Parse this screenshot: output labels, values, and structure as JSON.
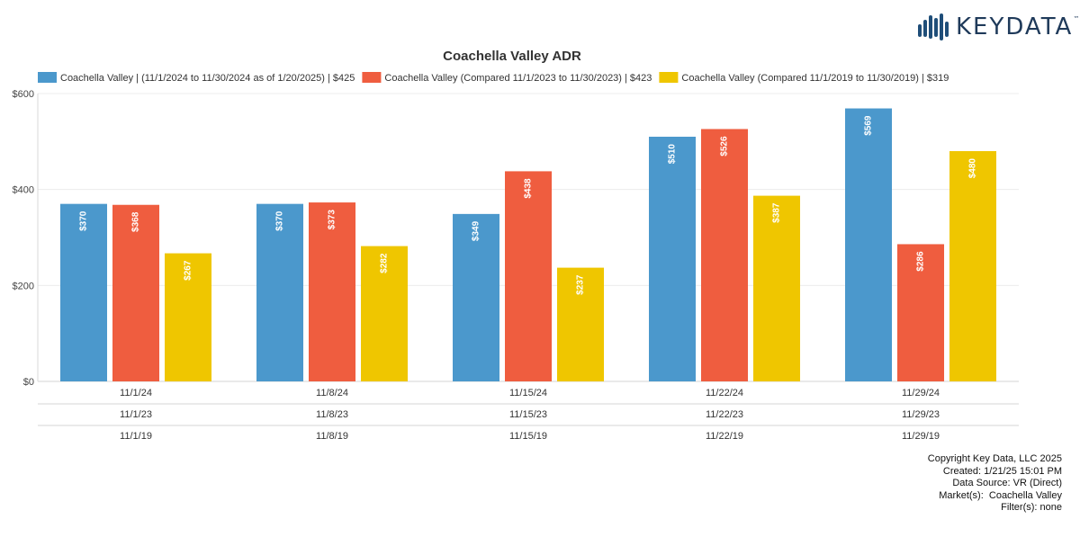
{
  "logo": {
    "text": "KEYDATA",
    "trademark": "™"
  },
  "chart_data": {
    "type": "bar",
    "title": "Coachella Valley ADR",
    "categories": [
      [
        "11/1/24",
        "11/1/23",
        "11/1/19"
      ],
      [
        "11/8/24",
        "11/8/23",
        "11/8/19"
      ],
      [
        "11/15/24",
        "11/15/23",
        "11/15/19"
      ],
      [
        "11/22/24",
        "11/22/23",
        "11/22/19"
      ],
      [
        "11/29/24",
        "11/29/23",
        "11/29/19"
      ]
    ],
    "series": [
      {
        "name": "Coachella Valley | (11/1/2024 to 11/30/2024 as of 1/20/2025) | $425",
        "color": "#4b98cc",
        "values": [
          370,
          370,
          349,
          510,
          569
        ],
        "labels": [
          "$370",
          "$370",
          "$349",
          "$510",
          "$569"
        ]
      },
      {
        "name": "Coachella Valley (Compared 11/1/2023 to 11/30/2023) | $423",
        "color": "#ef5d3f",
        "values": [
          368,
          373,
          438,
          526,
          286
        ],
        "labels": [
          "$368",
          "$373",
          "$438",
          "$526",
          "$286"
        ]
      },
      {
        "name": "Coachella Valley (Compared 11/1/2019 to 11/30/2019) | $319",
        "color": "#efc600",
        "values": [
          267,
          282,
          237,
          387,
          480
        ],
        "labels": [
          "$267",
          "$282",
          "$237",
          "$387",
          "$480"
        ]
      }
    ],
    "xlabel": "",
    "ylabel": "",
    "ylim": [
      0,
      600
    ],
    "yticks": [
      0,
      200,
      400,
      600
    ],
    "ytick_labels": [
      "$0",
      "$200",
      "$400",
      "$600"
    ],
    "grid": true,
    "legend": "top"
  },
  "footer": {
    "copyright": "Copyright Key Data, LLC 2025",
    "created": "Created: 1/21/25 15:01 PM",
    "source": "Data Source: VR (Direct)",
    "markets": "Market(s):  Coachella Valley",
    "filters": "Filter(s): none"
  }
}
